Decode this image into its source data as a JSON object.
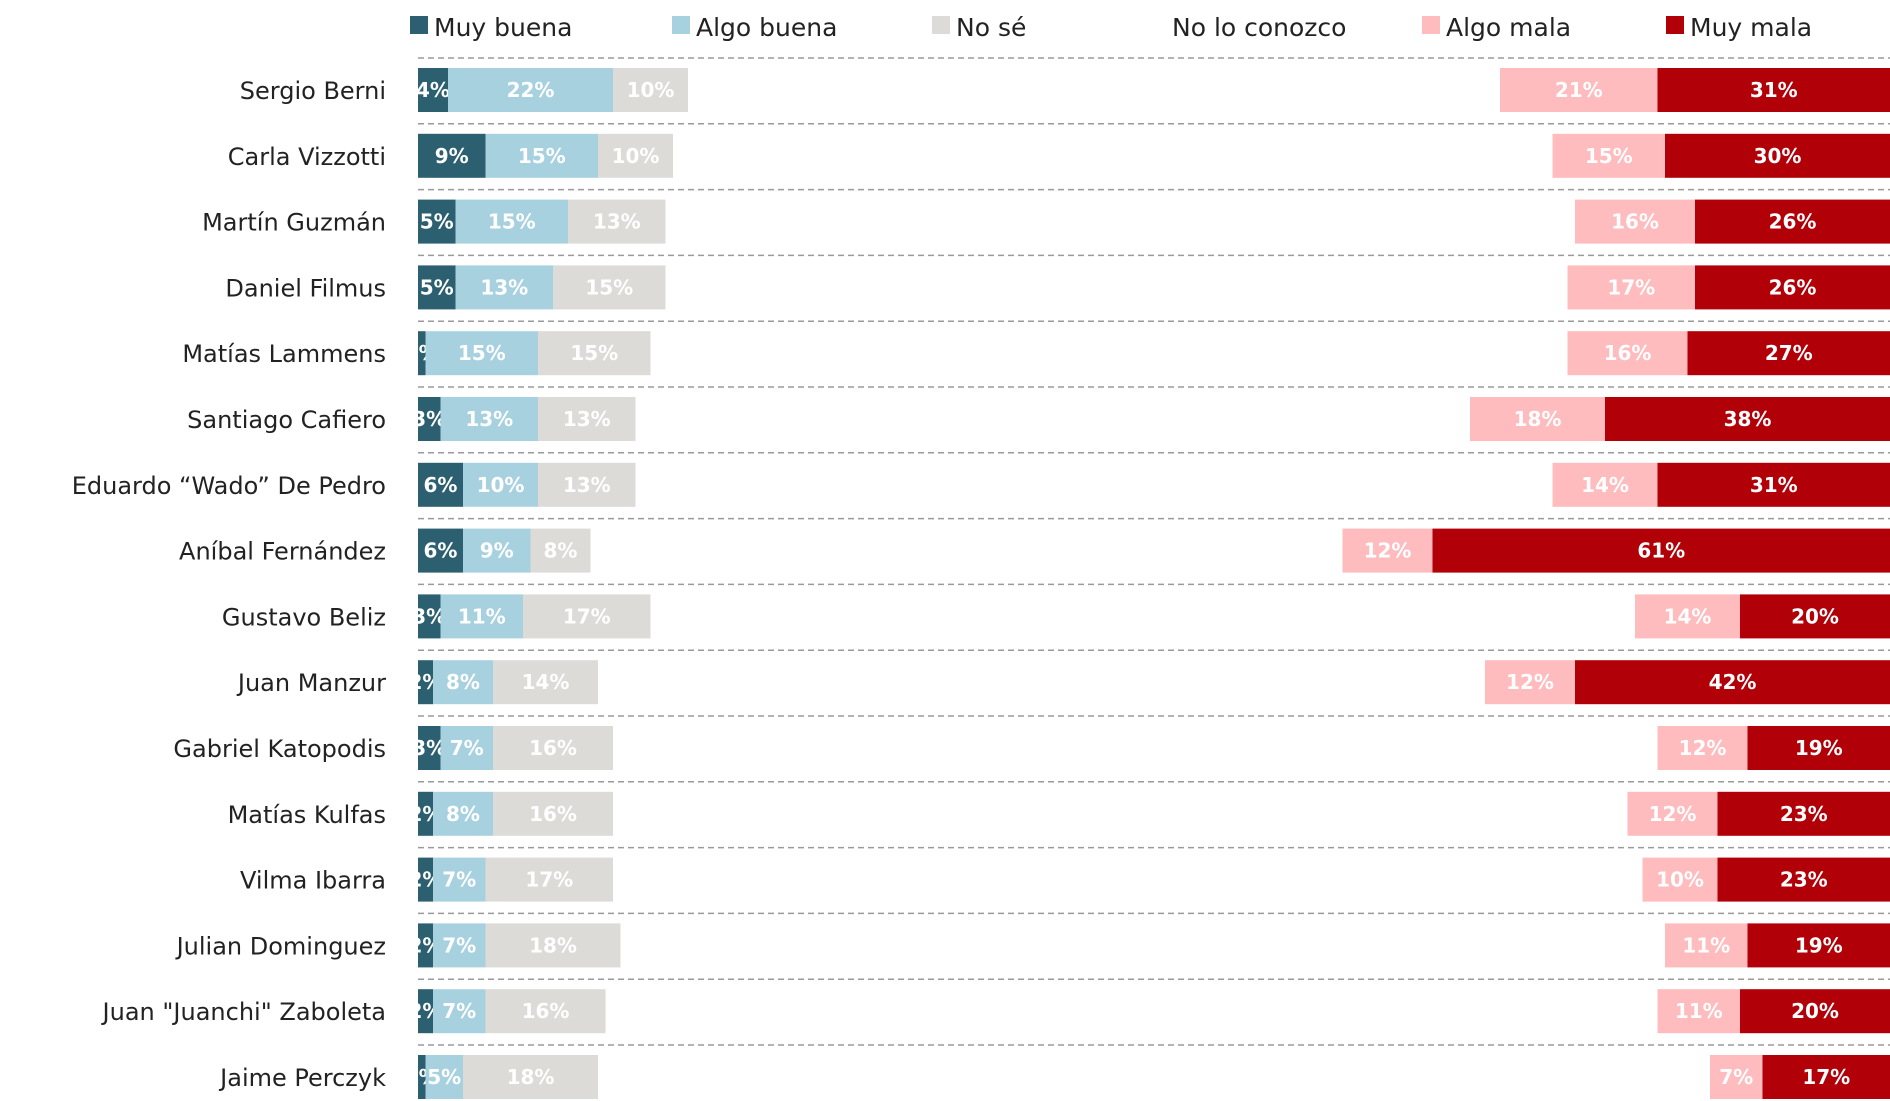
{
  "chart_data": {
    "type": "bar",
    "orientation": "horizontal",
    "stacking": "diverging",
    "grid": "dashed separators between rows",
    "legend_position": "top",
    "colors": {
      "Muy buena": "#2c5f6f",
      "Algo buena": "#a8d1e0",
      "No sé": "#dddbd8",
      "No lo conozco": "#ffffff",
      "Algo mala": "#ffbcbe",
      "Muy mala": "#b10008"
    },
    "categories": [
      "Sergio Berni",
      "Carla Vizzotti",
      "Martín Guzmán",
      "Daniel Filmus",
      "Matías Lammens",
      "Santiago Cafiero",
      "Eduardo “Wado” De Pedro",
      "Aníbal Fernández",
      "Gustavo Beliz",
      "Juan Manzur",
      "Gabriel Katopodis",
      "Matías Kulfas",
      "Vilma Ibarra",
      "Julian Dominguez",
      "Juan \"Juanchi\" Zaboleta",
      "Jaime Perczyk"
    ],
    "series": [
      {
        "name": "Muy buena",
        "values": [
          4,
          9,
          5,
          5,
          1,
          3,
          6,
          6,
          3,
          2,
          3,
          2,
          2,
          2,
          2,
          1
        ],
        "labels": [
          "4%",
          "9%",
          "5%",
          "5%",
          "1%",
          "3%",
          "6%",
          "6%",
          "3%",
          "2%",
          "3%",
          "2%",
          "2%",
          "2%",
          "2%",
          "1%"
        ]
      },
      {
        "name": "Algo buena",
        "values": [
          22,
          15,
          15,
          13,
          15,
          13,
          10,
          9,
          11,
          8,
          7,
          8,
          7,
          7,
          7,
          5
        ],
        "labels": [
          "22%",
          "15%",
          "15%",
          "13%",
          "15%",
          "13%",
          "10%",
          "9%",
          "11%",
          "8%",
          "7%",
          "8%",
          "7%",
          "7%",
          "7%",
          "5%"
        ]
      },
      {
        "name": "No sé",
        "values": [
          10,
          10,
          13,
          15,
          15,
          13,
          13,
          8,
          17,
          14,
          16,
          16,
          17,
          18,
          16,
          18
        ],
        "labels": [
          "10%",
          "10%",
          "13%",
          "15%",
          "15%",
          "13%",
          "13%",
          "8%",
          "17%",
          "14%",
          "16%",
          "16%",
          "17%",
          "18%",
          "16%",
          "18%"
        ]
      },
      {
        "name": "No lo conozco",
        "values": [
          null,
          null,
          null,
          null,
          null,
          null,
          null,
          null,
          null,
          null,
          null,
          null,
          null,
          null,
          null,
          null
        ]
      },
      {
        "name": "Algo mala",
        "values": [
          21,
          15,
          16,
          17,
          16,
          18,
          14,
          12,
          14,
          12,
          12,
          12,
          10,
          11,
          11,
          7
        ],
        "labels": [
          "21%",
          "15%",
          "16%",
          "17%",
          "16%",
          "18%",
          "14%",
          "12%",
          "14%",
          "12%",
          "12%",
          "12%",
          "10%",
          "11%",
          "11%",
          "7%"
        ]
      },
      {
        "name": "Muy mala",
        "values": [
          31,
          30,
          26,
          26,
          27,
          38,
          31,
          61,
          20,
          42,
          19,
          23,
          23,
          19,
          20,
          17
        ],
        "labels": [
          "31%",
          "30%",
          "26%",
          "26%",
          "27%",
          "38%",
          "31%",
          "61%",
          "20%",
          "42%",
          "19%",
          "23%",
          "23%",
          "19%",
          "20%",
          "17%"
        ]
      }
    ]
  }
}
